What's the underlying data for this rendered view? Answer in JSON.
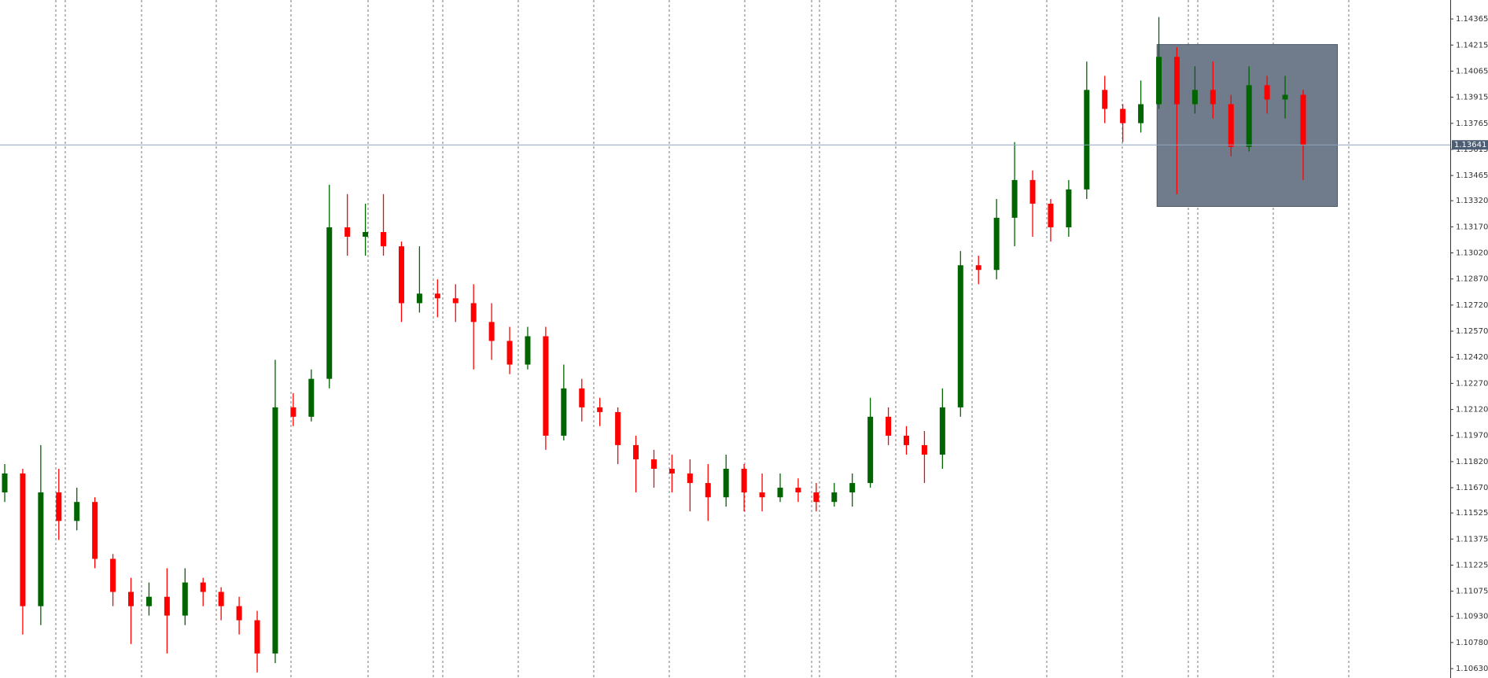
{
  "chart_data": {
    "type": "candlestick",
    "up_color": "#006400",
    "down_color": "#ff0000",
    "ylim": [
      1.10576,
      1.14474
    ],
    "yticks": [
      1.14365,
      1.14215,
      1.14065,
      1.13915,
      1.13765,
      1.13615,
      1.13465,
      {
        "value": 1.1332,
        "label": "1.13320"
      },
      {
        "value": 1.1317,
        "label": "1.13170"
      },
      {
        "value": 1.1302,
        "label": "1.13020"
      },
      {
        "value": 1.1287,
        "label": "1.12870"
      },
      {
        "value": 1.1272,
        "label": "1.12720"
      },
      {
        "value": 1.1257,
        "label": "1.12570"
      },
      {
        "value": 1.1242,
        "label": "1.12420"
      },
      {
        "value": 1.1227,
        "label": "1.12270"
      },
      {
        "value": 1.1212,
        "label": "1.12120"
      },
      {
        "value": 1.1197,
        "label": "1.11970"
      },
      {
        "value": 1.1182,
        "label": "1.11820"
      },
      {
        "value": 1.1167,
        "label": "1.11670"
      },
      1.11525,
      1.11375,
      1.11225,
      1.11075,
      {
        "value": 1.1093,
        "label": "1.10930"
      },
      {
        "value": 1.1078,
        "label": "1.10780"
      },
      {
        "value": 1.1063,
        "label": "1.10630"
      }
    ],
    "grid": false,
    "current_price": 1.13641,
    "current_price_color": "#8fa3bd",
    "rectangle": {
      "x": [
        63.9,
        73.9
      ],
      "y": [
        1.14218,
        1.13287
      ],
      "color": "#707c8b"
    },
    "open": [
      1.11643,
      1.11752,
      1.10989,
      1.11643,
      1.11479,
      1.11588,
      1.11261,
      1.11071,
      1.10989,
      1.11043,
      1.10935,
      1.11125,
      1.11071,
      1.10989,
      1.10908,
      1.10717,
      1.12132,
      1.12078,
      1.12296,
      1.13167,
      1.13113,
      1.1314,
      1.13058,
      1.12731,
      1.12786,
      1.12759,
      1.12731,
      1.12623,
      1.12514,
      1.12378,
      1.12541,
      1.11969,
      1.12241,
      1.12132,
      1.12105,
      1.11915,
      1.11833,
      1.11779,
      1.11752,
      1.11697,
      1.11615,
      1.11779,
      1.11643,
      1.11615,
      1.1167,
      1.11643,
      1.11588,
      1.11643,
      1.11697,
      1.12078,
      1.11969,
      1.11915,
      1.1186,
      1.12132,
      1.12949,
      1.12922,
      1.13222,
      1.13439,
      1.13303,
      1.13167,
      1.13385,
      1.13957,
      1.13848,
      1.13766,
      1.13875,
      1.14147,
      1.13875,
      1.13957,
      1.13875,
      1.1363,
      1.13984,
      1.13902,
      1.13929
    ],
    "high": [
      1.11806,
      1.11779,
      1.11915,
      1.11779,
      1.1167,
      1.11615,
      1.11289,
      1.11152,
      1.11125,
      1.11207,
      1.11207,
      1.11152,
      1.11098,
      1.11043,
      1.10962,
      1.12405,
      1.12214,
      1.1235,
      1.13412,
      1.13358,
      1.13303,
      1.13358,
      1.13085,
      1.13058,
      1.12868,
      1.1284,
      1.1284,
      1.12731,
      1.12595,
      1.12595,
      1.12595,
      1.12378,
      1.12296,
      1.12187,
      1.12132,
      1.11969,
      1.11888,
      1.1186,
      1.11833,
      1.11806,
      1.1186,
      1.11806,
      1.11752,
      1.11752,
      1.11724,
      1.11697,
      1.11697,
      1.11752,
      1.12187,
      1.12132,
      1.12024,
      1.11996,
      1.12241,
      1.13031,
      1.13004,
      1.1333,
      1.13657,
      1.13494,
      1.1333,
      1.13439,
      1.1412,
      1.14038,
      1.13875,
      1.14011,
      1.14376,
      1.14202,
      1.14093,
      1.1412,
      1.13929,
      1.14093,
      1.14038,
      1.14038,
      1.13957
    ],
    "low": [
      1.11588,
      1.10826,
      1.1088,
      1.1137,
      1.11425,
      1.11207,
      1.10989,
      1.10771,
      1.10935,
      1.10717,
      1.1088,
      1.10989,
      1.10908,
      1.10826,
      1.10608,
      1.10662,
      1.12024,
      1.12051,
      1.12241,
      1.13004,
      1.13004,
      1.13004,
      1.12623,
      1.12677,
      1.1265,
      1.12623,
      1.1235,
      1.12405,
      1.12323,
      1.1235,
      1.11888,
      1.11942,
      1.12051,
      1.12024,
      1.11806,
      1.11643,
      1.1167,
      1.11643,
      1.11534,
      1.11479,
      1.11561,
      1.11534,
      1.11534,
      1.11588,
      1.11588,
      1.11534,
      1.11561,
      1.11561,
      1.1167,
      1.11915,
      1.1186,
      1.11697,
      1.11779,
      1.12078,
      1.1284,
      1.12868,
      1.13058,
      1.13113,
      1.13085,
      1.13113,
      1.1333,
      1.13766,
      1.13657,
      1.13712,
      1.13848,
      1.13358,
      1.13821,
      1.13793,
      1.13575,
      1.13603,
      1.13821,
      1.13793,
      1.13439
    ],
    "close": [
      1.11752,
      1.10989,
      1.11643,
      1.11479,
      1.11588,
      1.11261,
      1.11071,
      1.10989,
      1.11043,
      1.10935,
      1.11125,
      1.11071,
      1.10989,
      1.10908,
      1.10717,
      1.12132,
      1.12078,
      1.12296,
      1.13167,
      1.13113,
      1.1314,
      1.13058,
      1.12731,
      1.12786,
      1.12759,
      1.12731,
      1.12623,
      1.12514,
      1.12378,
      1.12541,
      1.11969,
      1.12241,
      1.12132,
      1.12105,
      1.11915,
      1.11833,
      1.11779,
      1.11752,
      1.11697,
      1.11615,
      1.11779,
      1.11643,
      1.11615,
      1.1167,
      1.11643,
      1.11588,
      1.11643,
      1.11697,
      1.12078,
      1.11969,
      1.11915,
      1.1186,
      1.12132,
      1.12949,
      1.12922,
      1.13222,
      1.13439,
      1.13303,
      1.13167,
      1.13385,
      1.13957,
      1.13848,
      1.13766,
      1.13875,
      1.14147,
      1.13875,
      1.13957,
      1.13875,
      1.1363,
      1.13984,
      1.13902,
      1.13929,
      1.13641
    ]
  }
}
